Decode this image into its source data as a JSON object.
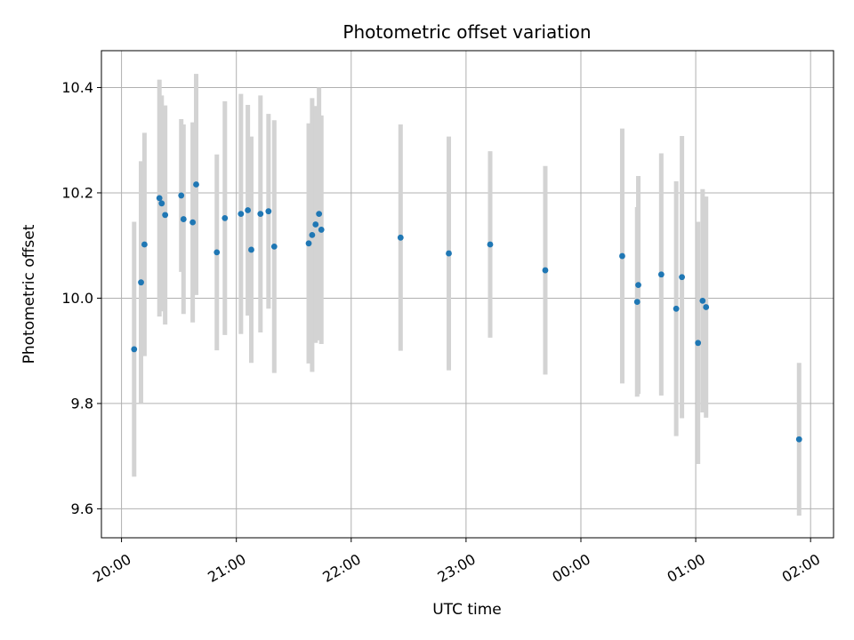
{
  "chart_data": {
    "type": "scatter",
    "title": "Photometric offset variation",
    "xlabel": "UTC time",
    "ylabel": "Photometric offset",
    "x_unit": "hours since 20:00 UTC",
    "xlim": [
      -0.175,
      6.2
    ],
    "ylim": [
      9.545,
      10.47
    ],
    "x_ticks": [
      0,
      1,
      2,
      3,
      4,
      5,
      6
    ],
    "x_tick_labels": [
      "20:00",
      "21:00",
      "22:00",
      "23:00",
      "00:00",
      "01:00",
      "02:00"
    ],
    "y_ticks": [
      9.6,
      9.8,
      10.0,
      10.2,
      10.4
    ],
    "y_tick_labels": [
      "9.6",
      "9.8",
      "10.0",
      "10.2",
      "10.4"
    ],
    "grid": true,
    "colors": {
      "point": "#1f77b4",
      "errorbar": "#d3d3d3",
      "grid": "#b0b0b0"
    },
    "points": [
      {
        "x": 0.11,
        "y": 9.903,
        "err": 0.242
      },
      {
        "x": 0.17,
        "y": 10.03,
        "err": 0.23
      },
      {
        "x": 0.2,
        "y": 10.102,
        "err": 0.212
      },
      {
        "x": 0.33,
        "y": 10.19,
        "err": 0.225
      },
      {
        "x": 0.35,
        "y": 10.18,
        "err": 0.205
      },
      {
        "x": 0.38,
        "y": 10.158,
        "err": 0.208
      },
      {
        "x": 0.52,
        "y": 10.195,
        "err": 0.145
      },
      {
        "x": 0.54,
        "y": 10.15,
        "err": 0.18
      },
      {
        "x": 0.62,
        "y": 10.144,
        "err": 0.19
      },
      {
        "x": 0.65,
        "y": 10.216,
        "err": 0.21
      },
      {
        "x": 0.83,
        "y": 10.087,
        "err": 0.186
      },
      {
        "x": 0.9,
        "y": 10.152,
        "err": 0.222
      },
      {
        "x": 1.04,
        "y": 10.16,
        "err": 0.228
      },
      {
        "x": 1.1,
        "y": 10.167,
        "err": 0.2
      },
      {
        "x": 1.13,
        "y": 10.092,
        "err": 0.215
      },
      {
        "x": 1.21,
        "y": 10.16,
        "err": 0.225
      },
      {
        "x": 1.28,
        "y": 10.165,
        "err": 0.185
      },
      {
        "x": 1.33,
        "y": 10.098,
        "err": 0.24
      },
      {
        "x": 1.63,
        "y": 10.104,
        "err": 0.228
      },
      {
        "x": 1.66,
        "y": 10.12,
        "err": 0.26
      },
      {
        "x": 1.69,
        "y": 10.14,
        "err": 0.225
      },
      {
        "x": 1.72,
        "y": 10.16,
        "err": 0.24
      },
      {
        "x": 1.74,
        "y": 10.13,
        "err": 0.217
      },
      {
        "x": 2.43,
        "y": 10.115,
        "err": 0.215
      },
      {
        "x": 2.85,
        "y": 10.085,
        "err": 0.222
      },
      {
        "x": 3.21,
        "y": 10.102,
        "err": 0.177
      },
      {
        "x": 3.69,
        "y": 10.053,
        "err": 0.198
      },
      {
        "x": 4.36,
        "y": 10.08,
        "err": 0.242
      },
      {
        "x": 4.49,
        "y": 9.993,
        "err": 0.18
      },
      {
        "x": 4.5,
        "y": 10.025,
        "err": 0.207
      },
      {
        "x": 4.7,
        "y": 10.045,
        "err": 0.23
      },
      {
        "x": 4.83,
        "y": 9.98,
        "err": 0.242
      },
      {
        "x": 4.88,
        "y": 10.04,
        "err": 0.268
      },
      {
        "x": 5.02,
        "y": 9.915,
        "err": 0.23
      },
      {
        "x": 5.06,
        "y": 9.995,
        "err": 0.212
      },
      {
        "x": 5.09,
        "y": 9.983,
        "err": 0.21
      },
      {
        "x": 5.9,
        "y": 9.732,
        "err": 0.145
      }
    ]
  }
}
